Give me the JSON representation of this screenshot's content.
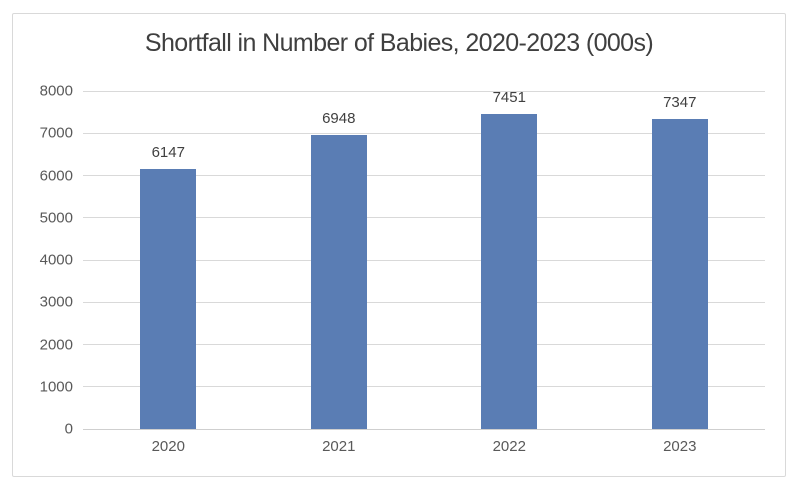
{
  "chart_data": {
    "type": "bar",
    "title": "Shortfall in Number of Babies, 2020-2023 (000s)",
    "categories": [
      "2020",
      "2021",
      "2022",
      "2023"
    ],
    "values": [
      6147,
      6948,
      7451,
      7347
    ],
    "data_labels": [
      "6147",
      "6948",
      "7451",
      "7347"
    ],
    "xlabel": "",
    "ylabel": "",
    "ylim": [
      0,
      8000
    ],
    "yticks": [
      0,
      1000,
      2000,
      3000,
      4000,
      5000,
      6000,
      7000,
      8000
    ],
    "ytick_labels": [
      "0",
      "1000",
      "2000",
      "3000",
      "4000",
      "5000",
      "6000",
      "7000",
      "8000"
    ],
    "grid": true,
    "legend": false,
    "legend_position": "none"
  },
  "colors": {
    "bar": "#5a7db4",
    "gridline": "#d9d9d9",
    "baseline": "#cfcfcf",
    "frame_border": "#d9d9d9",
    "title_text": "#3f3f3f",
    "axis_text": "#595959",
    "value_text": "#404040",
    "background": "#ffffff"
  }
}
